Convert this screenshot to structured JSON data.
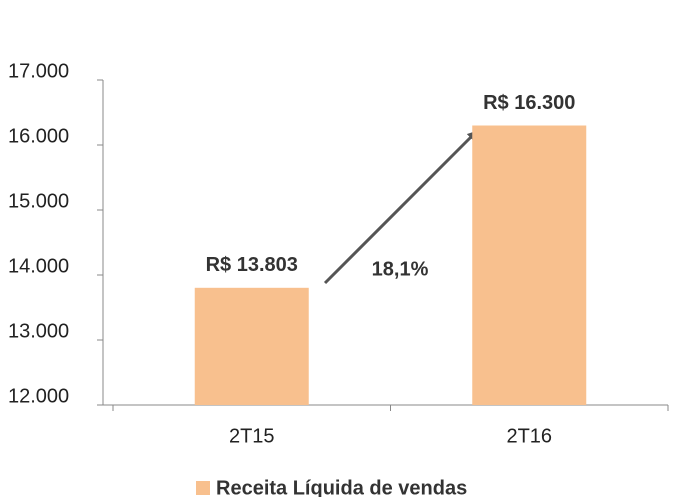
{
  "chart_data": {
    "type": "bar",
    "categories": [
      "2T15",
      "2T16"
    ],
    "series": [
      {
        "name": "Receita Líquida de vendas",
        "color": "#f8c08e",
        "values": [
          13803,
          16300
        ],
        "value_labels": [
          "R$ 13.803",
          "R$ 16.300"
        ]
      }
    ],
    "ylim": [
      12000,
      17000
    ],
    "yticks": [
      {
        "value": 12000,
        "label": "12.000"
      },
      {
        "value": 13000,
        "label": "13.000"
      },
      {
        "value": 14000,
        "label": "14.000"
      },
      {
        "value": 15000,
        "label": "15.000"
      },
      {
        "value": 16000,
        "label": "16.000"
      },
      {
        "value": 17000,
        "label": "17.000"
      }
    ],
    "annotations": [
      "18,1%"
    ],
    "legend": "bottom"
  }
}
